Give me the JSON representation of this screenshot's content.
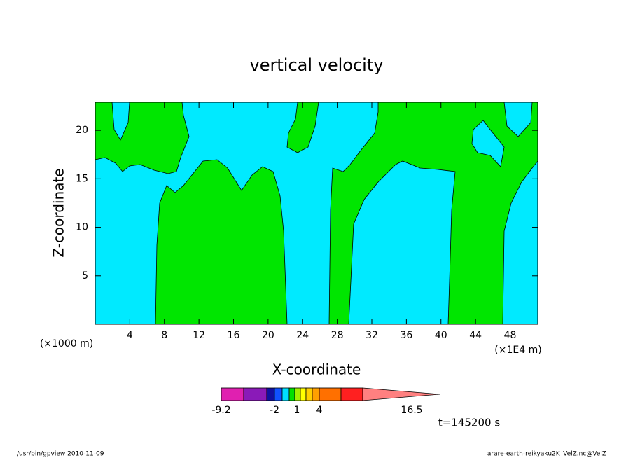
{
  "chart_data": {
    "type": "contour",
    "title": "vertical velocity",
    "xlabel": "X-coordinate",
    "ylabel": "Z-coordinate",
    "xunit": "(×1000 m)",
    "xunit2": "(×1E4 m)",
    "xlim": [
      0,
      51.2
    ],
    "ylim": [
      0,
      22.9
    ],
    "xticks": [
      4,
      8,
      12,
      16,
      20,
      24,
      28,
      32,
      36,
      40,
      44,
      48
    ],
    "yticks": [
      5,
      10,
      15,
      20
    ],
    "colorbar": {
      "colors": [
        "#e020b0",
        "#8a1ab8",
        "#1010a0",
        "#1050ff",
        "#00e0ff",
        "#00e000",
        "#a0f000",
        "#ffff00",
        "#ffd000",
        "#ffa000",
        "#ff7000",
        "#ff2020",
        "#ff8080"
      ],
      "labels": [
        "-9.2",
        "-2",
        "1",
        "4",
        "16.5"
      ]
    },
    "time": "t=145200 s",
    "footer_left": "/usr/bin/gpview   2010-11-09",
    "footer_right": "arare-earth-reikyaku2K_VelZ.nc@VelZ"
  }
}
